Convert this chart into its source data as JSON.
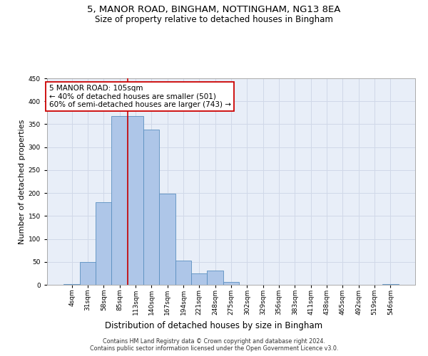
{
  "title_line1": "5, MANOR ROAD, BINGHAM, NOTTINGHAM, NG13 8EA",
  "title_line2": "Size of property relative to detached houses in Bingham",
  "xlabel": "Distribution of detached houses by size in Bingham",
  "ylabel": "Number of detached properties",
  "categories": [
    "4sqm",
    "31sqm",
    "58sqm",
    "85sqm",
    "113sqm",
    "140sqm",
    "167sqm",
    "194sqm",
    "221sqm",
    "248sqm",
    "275sqm",
    "302sqm",
    "329sqm",
    "356sqm",
    "383sqm",
    "411sqm",
    "438sqm",
    "465sqm",
    "492sqm",
    "519sqm",
    "546sqm"
  ],
  "values": [
    2,
    49,
    180,
    367,
    367,
    338,
    199,
    53,
    25,
    31,
    6,
    0,
    0,
    0,
    0,
    0,
    0,
    0,
    0,
    0,
    1
  ],
  "bar_color": "#aec6e8",
  "bar_edge_color": "#5a8fc0",
  "vline_x": 3.5,
  "vline_color": "#cc0000",
  "annotation_text": "5 MANOR ROAD: 105sqm\n← 40% of detached houses are smaller (501)\n60% of semi-detached houses are larger (743) →",
  "annotation_box_facecolor": "#ffffff",
  "annotation_box_edgecolor": "#cc0000",
  "ylim": [
    0,
    450
  ],
  "yticks": [
    0,
    50,
    100,
    150,
    200,
    250,
    300,
    350,
    400,
    450
  ],
  "grid_color": "#d0d8e8",
  "bg_color": "#e8eef8",
  "footer": "Contains HM Land Registry data © Crown copyright and database right 2024.\nContains public sector information licensed under the Open Government Licence v3.0.",
  "title_fontsize": 9.5,
  "subtitle_fontsize": 8.5,
  "tick_fontsize": 6.5,
  "ylabel_fontsize": 8,
  "xlabel_fontsize": 8.5,
  "annotation_fontsize": 7.5,
  "footer_fontsize": 5.8
}
